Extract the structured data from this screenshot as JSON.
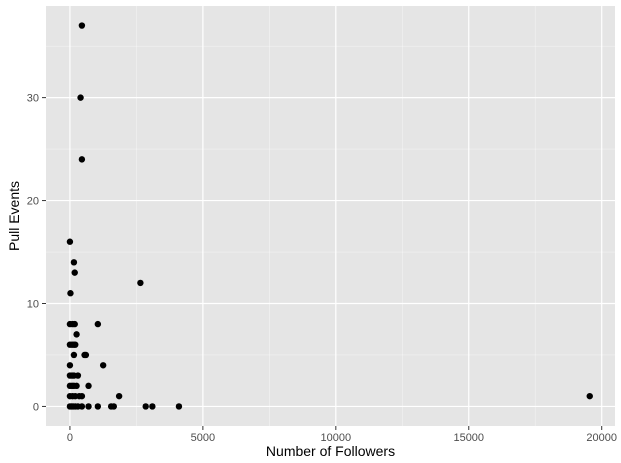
{
  "chart_data": {
    "type": "scatter",
    "title": "",
    "xlabel": "Number of Followers",
    "ylabel": "Pull Events",
    "xlim": [
      -900,
      20500
    ],
    "ylim": [
      -1.9,
      38.9
    ],
    "x_ticks": [
      0,
      5000,
      10000,
      15000,
      20000
    ],
    "x_tick_labels": [
      "0",
      "5000",
      "10000",
      "15000",
      "20000"
    ],
    "y_ticks": [
      0,
      10,
      20,
      30
    ],
    "y_tick_labels": [
      "0",
      "10",
      "20",
      "30"
    ],
    "grid": true,
    "legend": "none",
    "colors": {
      "panel": "#e5e5e5",
      "grid_major": "#ffffff",
      "point": "#000000",
      "tick_text": "#4d4d4d"
    },
    "points": [
      {
        "x": 450,
        "y": 37
      },
      {
        "x": 400,
        "y": 30
      },
      {
        "x": 450,
        "y": 24
      },
      {
        "x": 0,
        "y": 16
      },
      {
        "x": 150,
        "y": 14
      },
      {
        "x": 180,
        "y": 13
      },
      {
        "x": 2650,
        "y": 12
      },
      {
        "x": 20,
        "y": 11
      },
      {
        "x": 0,
        "y": 8
      },
      {
        "x": 100,
        "y": 8
      },
      {
        "x": 180,
        "y": 8
      },
      {
        "x": 1050,
        "y": 8
      },
      {
        "x": 250,
        "y": 7
      },
      {
        "x": 0,
        "y": 6
      },
      {
        "x": 80,
        "y": 6
      },
      {
        "x": 150,
        "y": 6
      },
      {
        "x": 200,
        "y": 6
      },
      {
        "x": 150,
        "y": 5
      },
      {
        "x": 550,
        "y": 5
      },
      {
        "x": 600,
        "y": 5
      },
      {
        "x": 0,
        "y": 4
      },
      {
        "x": 1250,
        "y": 4
      },
      {
        "x": 0,
        "y": 3
      },
      {
        "x": 80,
        "y": 3
      },
      {
        "x": 150,
        "y": 3
      },
      {
        "x": 300,
        "y": 3
      },
      {
        "x": 0,
        "y": 2
      },
      {
        "x": 80,
        "y": 2
      },
      {
        "x": 150,
        "y": 2
      },
      {
        "x": 250,
        "y": 2
      },
      {
        "x": 700,
        "y": 2
      },
      {
        "x": 0,
        "y": 1
      },
      {
        "x": 100,
        "y": 1
      },
      {
        "x": 200,
        "y": 1
      },
      {
        "x": 350,
        "y": 1
      },
      {
        "x": 450,
        "y": 1
      },
      {
        "x": 1850,
        "y": 1
      },
      {
        "x": 19550,
        "y": 1
      },
      {
        "x": 0,
        "y": 0
      },
      {
        "x": 60,
        "y": 0
      },
      {
        "x": 120,
        "y": 0
      },
      {
        "x": 200,
        "y": 0
      },
      {
        "x": 300,
        "y": 0
      },
      {
        "x": 450,
        "y": 0
      },
      {
        "x": 700,
        "y": 0
      },
      {
        "x": 1050,
        "y": 0
      },
      {
        "x": 1550,
        "y": 0
      },
      {
        "x": 1650,
        "y": 0
      },
      {
        "x": 2850,
        "y": 0
      },
      {
        "x": 3100,
        "y": 0
      },
      {
        "x": 4100,
        "y": 0
      }
    ]
  }
}
